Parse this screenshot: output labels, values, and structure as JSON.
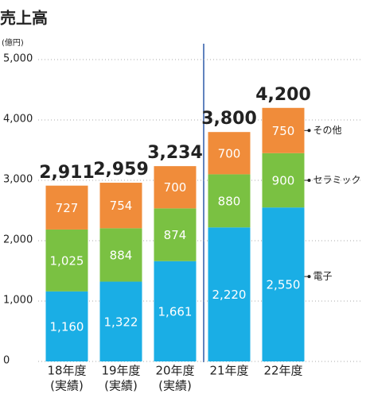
{
  "chart_data": {
    "type": "stacked_bar",
    "title": "売上高",
    "y_unit": "(億円)",
    "categories": [
      "18年度",
      "19年度",
      "20年度",
      "21年度",
      "22年度"
    ],
    "category_notes": [
      "(実績)",
      "(実績)",
      "(実績)",
      null,
      null
    ],
    "series": [
      {
        "name": "電子",
        "color": "#1aaee5",
        "values": [
          1160,
          1322,
          1661,
          2220,
          2550
        ],
        "value_labels": [
          "1,160",
          "1,322",
          "1,661",
          "2,220",
          "2,550"
        ]
      },
      {
        "name": "セラミック",
        "color": "#7ac142",
        "values": [
          1025,
          884,
          874,
          880,
          900
        ],
        "value_labels": [
          "1,025",
          "884",
          "874",
          "880",
          "900"
        ]
      },
      {
        "name": "その他",
        "color": "#f08c3a",
        "values": [
          727,
          754,
          700,
          700,
          750
        ],
        "value_labels": [
          "727",
          "754",
          "700",
          "700",
          "750"
        ]
      }
    ],
    "totals": [
      2911,
      2959,
      3234,
      3800,
      4200
    ],
    "total_labels": [
      "2,911",
      "2,959",
      "3,234",
      "3,800",
      "4,200"
    ],
    "ylim": [
      0,
      5000
    ],
    "yticks": [
      0,
      {
        "value": 1000,
        "label": "1,000"
      },
      {
        "value": 2000,
        "label": "2,000"
      },
      {
        "value": 3000,
        "label": "3,000"
      },
      {
        "value": 4000,
        "label": "4,000"
      },
      {
        "value": 5000,
        "label": "5,000"
      }
    ],
    "grid": true
  }
}
